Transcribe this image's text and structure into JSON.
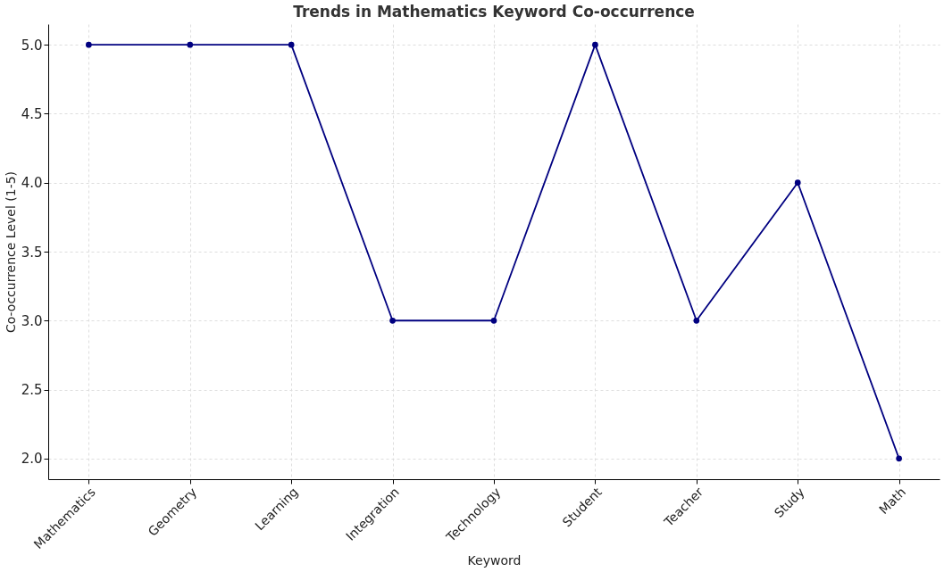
{
  "chart_data": {
    "type": "line",
    "title": "Trends in Mathematics Keyword Co-occurrence",
    "xlabel": "Keyword",
    "ylabel": "Co-occurrence Level (1-5)",
    "categories": [
      "Mathematics",
      "Geometry",
      "Learning",
      "Integration",
      "Technology",
      "Student",
      "Teacher",
      "Study",
      "Math"
    ],
    "series": [
      {
        "color": "#000080",
        "values": [
          5,
          5,
          5,
          3,
          3,
          5,
          3,
          4,
          2
        ]
      }
    ],
    "ylim": [
      1.85,
      5.15
    ],
    "yticks": [
      {
        "value": 2,
        "label": "2.0"
      },
      2.5,
      {
        "value": 3,
        "label": "3.0"
      },
      3.5,
      {
        "value": 4,
        "label": "4.0"
      },
      4.5,
      {
        "value": 5,
        "label": "5.0"
      }
    ],
    "grid": true,
    "marker": "circle",
    "line_style": "solid"
  }
}
